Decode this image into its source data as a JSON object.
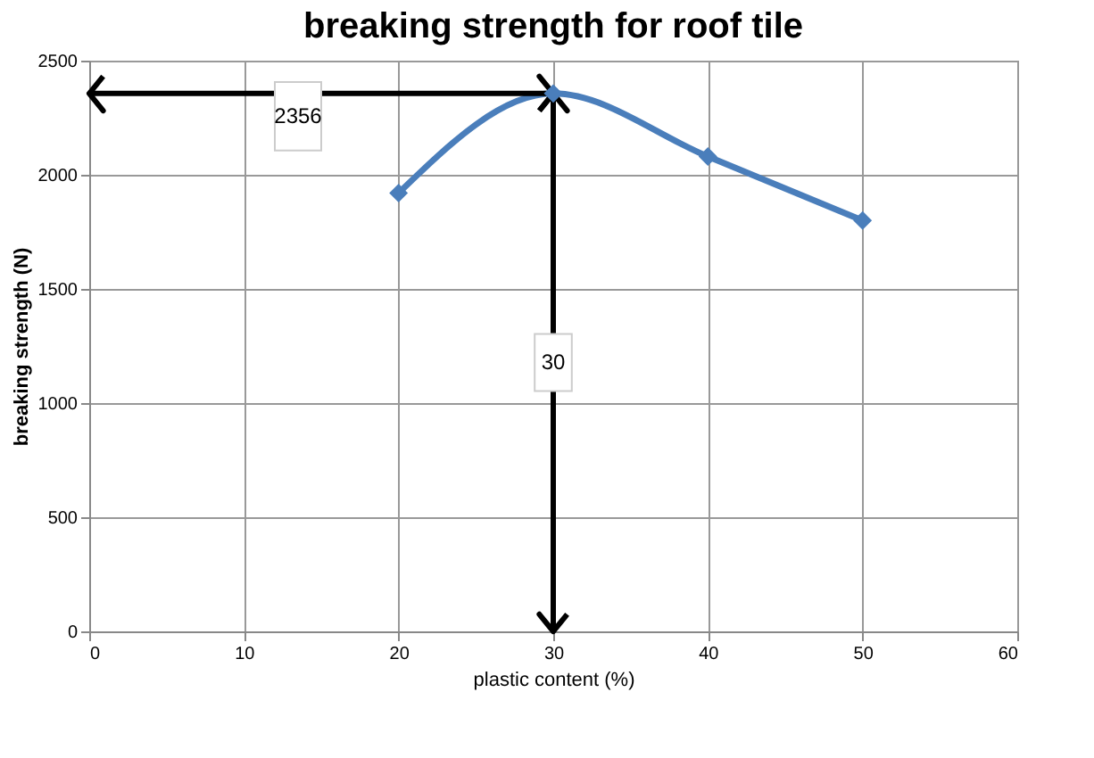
{
  "chart_data": {
    "type": "line",
    "title": "breaking strength for roof tile",
    "xlabel": "plastic content (%)",
    "ylabel": "breaking strength (N)",
    "x": [
      20,
      30,
      40,
      50
    ],
    "series": [
      {
        "color": "#4a7ebb",
        "values": [
          1920,
          2356,
          2080,
          1800
        ]
      }
    ],
    "xlim": [
      0,
      60
    ],
    "xticks": [
      0,
      10,
      20,
      30,
      40,
      50,
      60
    ],
    "ylim": [
      0,
      2500
    ],
    "yticks": [
      0,
      500,
      1000,
      1500,
      2000,
      2500
    ],
    "grid": true,
    "marker": "diamond",
    "line_style": "solid",
    "ref_lines": [
      {
        "axis": "y",
        "value": 2356,
        "label": "2356",
        "color": "#000000"
      },
      {
        "axis": "x",
        "value": 30,
        "label": "30",
        "color": "#000000"
      }
    ]
  }
}
